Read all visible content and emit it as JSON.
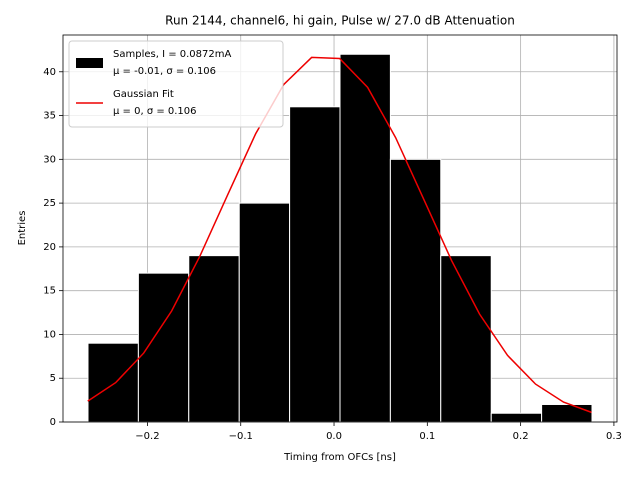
{
  "chart_data": {
    "type": "histogram",
    "title": "Run 2144, channel6, hi gain, Pulse w/ 27.0 dB Attenuation",
    "xlabel": "Timing from OFCs [ns]",
    "ylabel": "Entries",
    "bins": [
      -0.2637,
      -0.2097,
      -0.1557,
      -0.1016,
      -0.0476,
      0.0064,
      0.0604,
      0.1144,
      0.1685,
      0.2225,
      0.2765
    ],
    "series": [
      {
        "name": [
          "Samples, I = 0.0872mA",
          "μ = -0.01, σ = 0.106"
        ],
        "type": "histogram",
        "color": "#000000",
        "edgecolor": "#ffffff",
        "values": [
          9,
          17,
          19,
          25,
          36,
          42,
          30,
          19,
          1,
          2
        ]
      },
      {
        "name": [
          "Gaussian Fit",
          "μ = 0, σ = 0.106"
        ],
        "type": "line",
        "color": "#ee0000",
        "x": [
          -0.264,
          -0.234,
          -0.204,
          -0.174,
          -0.144,
          -0.114,
          -0.084,
          -0.054,
          -0.024,
          0.006,
          0.036,
          0.066,
          0.096,
          0.126,
          0.156,
          0.186,
          0.216,
          0.246,
          0.276
        ],
        "values": [
          2.38,
          4.5,
          7.87,
          12.69,
          18.89,
          25.95,
          32.92,
          38.53,
          41.64,
          41.52,
          38.22,
          32.48,
          25.47,
          18.44,
          12.32,
          7.6,
          4.33,
          2.27,
          1.1
        ]
      }
    ],
    "xlim": [
      -0.2905,
      0.3033
    ],
    "ylim": [
      0,
      44.2
    ],
    "xticks": [
      {
        "value": -0.2,
        "label": "−0.2"
      },
      {
        "value": -0.1,
        "label": "−0.1"
      },
      {
        "value": 0,
        "label": "0.0"
      },
      0.1,
      0.2,
      0.3
    ],
    "yticks": [
      0,
      5,
      10,
      15,
      20,
      25,
      30,
      35,
      40
    ],
    "grid": true,
    "legend": "upper left"
  }
}
